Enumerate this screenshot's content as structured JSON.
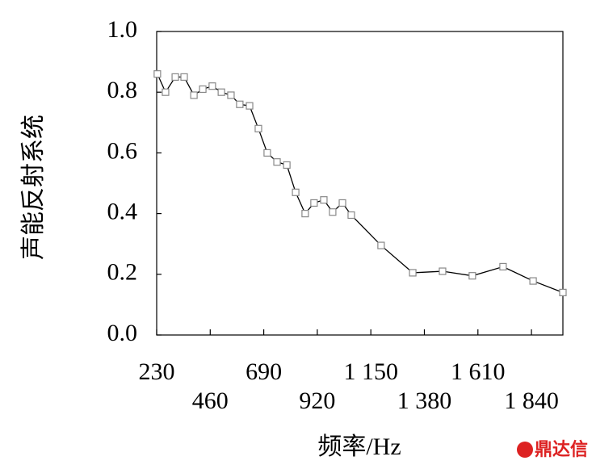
{
  "chart_data": {
    "type": "line",
    "x_label": "频率/Hz",
    "y_label": "声能反射系统",
    "x": [
      233,
      268,
      310,
      348,
      390,
      428,
      469,
      508,
      549,
      587,
      629,
      667,
      705,
      747,
      789,
      827,
      868,
      906,
      948,
      986,
      1028,
      1066,
      1194,
      1330,
      1458,
      1586,
      1718,
      1847,
      1975
    ],
    "series": [
      {
        "color": "#000000",
        "marker_color": "#888888",
        "values": [
          0.86,
          0.8,
          0.85,
          0.85,
          0.79,
          0.81,
          0.82,
          0.8,
          0.79,
          0.76,
          0.755,
          0.68,
          0.6,
          0.57,
          0.56,
          0.47,
          0.4,
          0.435,
          0.445,
          0.405,
          0.435,
          0.395,
          0.295,
          0.205,
          0.21,
          0.195,
          0.225,
          0.178,
          0.14
        ]
      }
    ],
    "xlim": [
      230,
      1975
    ],
    "xticks": [
      230,
      460,
      690,
      920,
      {
        "value": 1150,
        "label": "1 150"
      },
      {
        "value": 1380,
        "label": "1 380"
      },
      {
        "value": 1610,
        "label": "1 610"
      },
      {
        "value": 1840,
        "label": "1 840"
      }
    ],
    "ylim": [
      0,
      1
    ],
    "yticks": [
      {
        "value": 0,
        "label": "0.0"
      },
      0.2,
      0.4,
      0.6,
      0.8,
      {
        "value": 1,
        "label": "1.0"
      }
    ],
    "grid": false,
    "watermark": "鼎达信"
  }
}
